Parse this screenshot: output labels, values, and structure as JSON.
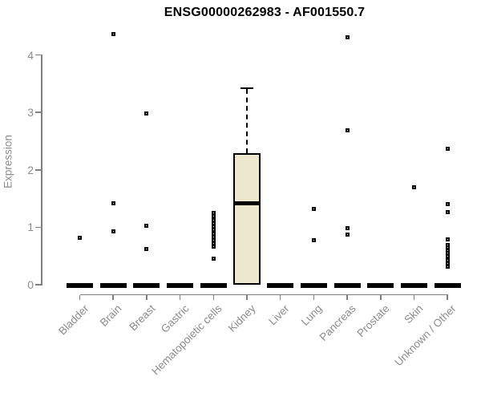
{
  "page": {
    "background": "#ffffff"
  },
  "chart_data": {
    "type": "boxplot",
    "title": "ENSG00000262983 - AF001550.7",
    "ylabel": "Expression",
    "xlabel": "",
    "ylim": [
      0,
      4
    ],
    "yticks": [
      0,
      1,
      2,
      3,
      4
    ],
    "grid": false,
    "legend": null,
    "colors": {
      "box_fill": "#ece7cd",
      "box_border": "#000000",
      "median": "#000000",
      "outlier": "#000000",
      "axis": "#808080",
      "tick_text": "#8c8c8c",
      "title_text": "#000000"
    },
    "categories": [
      "Bladder",
      "Brain",
      "Breast",
      "Gastric",
      "Hematopoietic cells",
      "Kidney",
      "Liver",
      "Lung",
      "Pancreas",
      "Prostate",
      "Skin",
      "Unknown / Other"
    ],
    "boxes": [
      {
        "category": "Bladder",
        "q1": 0,
        "median": 0,
        "q3": 0,
        "whisker_low": 0,
        "whisker_high": 0,
        "outliers": [
          0.82
        ]
      },
      {
        "category": "Brain",
        "q1": 0,
        "median": 0,
        "q3": 0,
        "whisker_low": 0,
        "whisker_high": 0,
        "outliers": [
          4.36,
          1.42,
          0.93
        ]
      },
      {
        "category": "Breast",
        "q1": 0,
        "median": 0,
        "q3": 0,
        "whisker_low": 0,
        "whisker_high": 0,
        "outliers": [
          2.98,
          1.03,
          0.62
        ]
      },
      {
        "category": "Gastric",
        "q1": 0,
        "median": 0,
        "q3": 0,
        "whisker_low": 0,
        "whisker_high": 0,
        "outliers": []
      },
      {
        "category": "Hematopoietic cells",
        "q1": 0,
        "median": 0,
        "q3": 0,
        "whisker_low": 0,
        "whisker_high": 0,
        "outliers": [
          1.25,
          1.19,
          1.13,
          1.07,
          1.01,
          0.95,
          0.89,
          0.83,
          0.77,
          0.72,
          0.66,
          0.45
        ]
      },
      {
        "category": "Kidney",
        "q1": 0,
        "median": 1.42,
        "q3": 2.29,
        "whisker_low": 0,
        "whisker_high": 3.41,
        "outliers": []
      },
      {
        "category": "Liver",
        "q1": 0,
        "median": 0,
        "q3": 0,
        "whisker_low": 0,
        "whisker_high": 0,
        "outliers": []
      },
      {
        "category": "Lung",
        "q1": 0,
        "median": 0,
        "q3": 0,
        "whisker_low": 0,
        "whisker_high": 0,
        "outliers": [
          1.32,
          0.77
        ]
      },
      {
        "category": "Pancreas",
        "q1": 0,
        "median": 0,
        "q3": 0,
        "whisker_low": 0,
        "whisker_high": 0,
        "outliers": [
          4.31,
          2.69,
          0.98,
          0.87
        ]
      },
      {
        "category": "Prostate",
        "q1": 0,
        "median": 0,
        "q3": 0,
        "whisker_low": 0,
        "whisker_high": 0,
        "outliers": []
      },
      {
        "category": "Skin",
        "q1": 0,
        "median": 0,
        "q3": 0,
        "whisker_low": 0,
        "whisker_high": 0,
        "outliers": [
          1.69
        ]
      },
      {
        "category": "Unknown / Other",
        "q1": 0,
        "median": 0,
        "q3": 0,
        "whisker_low": 0,
        "whisker_high": 0,
        "outliers": [
          2.36,
          1.4,
          1.26,
          0.79,
          0.69,
          0.65,
          0.6,
          0.55,
          0.5,
          0.46,
          0.42,
          0.37,
          0.31
        ]
      }
    ]
  }
}
